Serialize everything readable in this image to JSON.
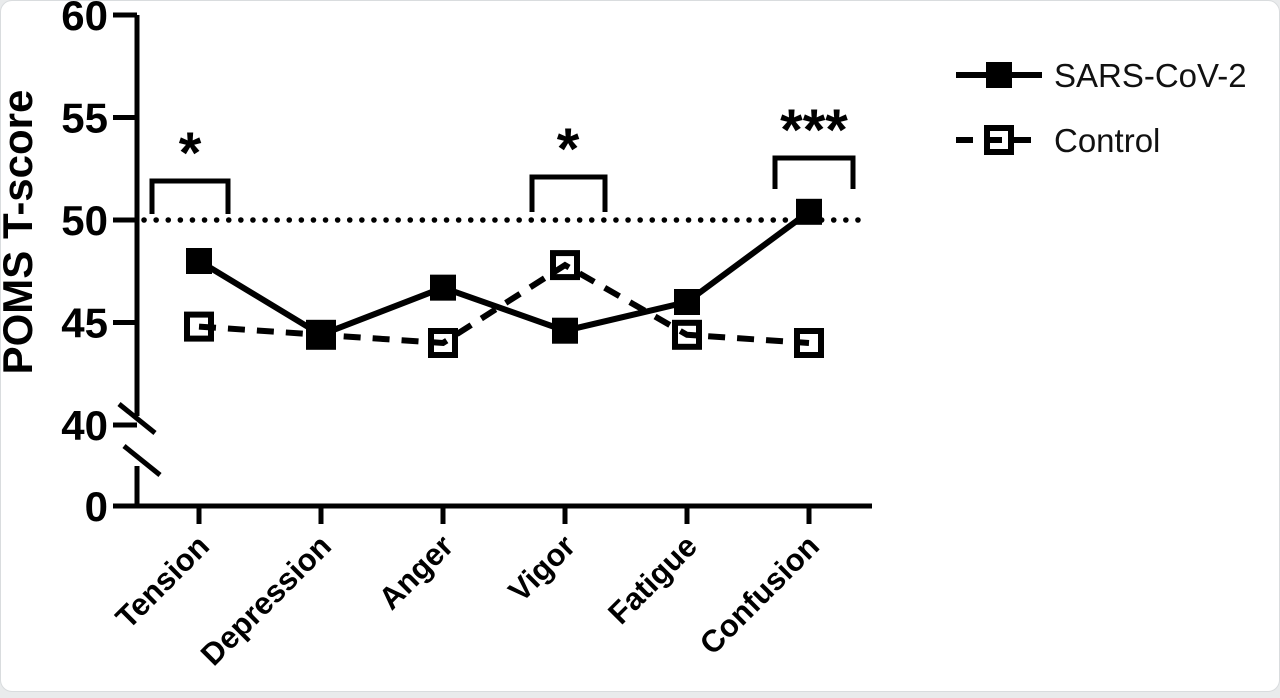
{
  "figure": {
    "page_background": "#e9ebec",
    "card_background": "#ffffff",
    "ink_color": "#000000"
  },
  "chart_data": {
    "type": "line",
    "title": "",
    "xlabel": "",
    "ylabel": "POMS T-score",
    "categories": [
      "Tension",
      "Depression",
      "Anger",
      "Vigor",
      "Fatigue",
      "Confusion"
    ],
    "series": [
      {
        "name": "SARS-CoV-2",
        "line": "solid",
        "marker": "filled-square",
        "values": [
          48.0,
          44.4,
          46.7,
          44.6,
          46.0,
          50.4
        ]
      },
      {
        "name": "Control",
        "line": "dashed",
        "marker": "open-square",
        "values": [
          44.8,
          44.4,
          44.0,
          47.8,
          44.4,
          44.0
        ]
      }
    ],
    "y_ticks": [
      "60",
      "55",
      "50",
      "45",
      "40",
      "0"
    ],
    "y_axis_break": true,
    "y_axis_break_between": [
      0,
      40
    ],
    "ylim_display": [
      40,
      60
    ],
    "reference_line_y": 50,
    "reference_line_style": "dotted",
    "grid": false,
    "legend_position": "top-right",
    "significance": [
      {
        "text": "*",
        "category": "Tension"
      },
      {
        "text": "*",
        "category": "Vigor"
      },
      {
        "text": "***",
        "category": "Confusion"
      }
    ]
  }
}
